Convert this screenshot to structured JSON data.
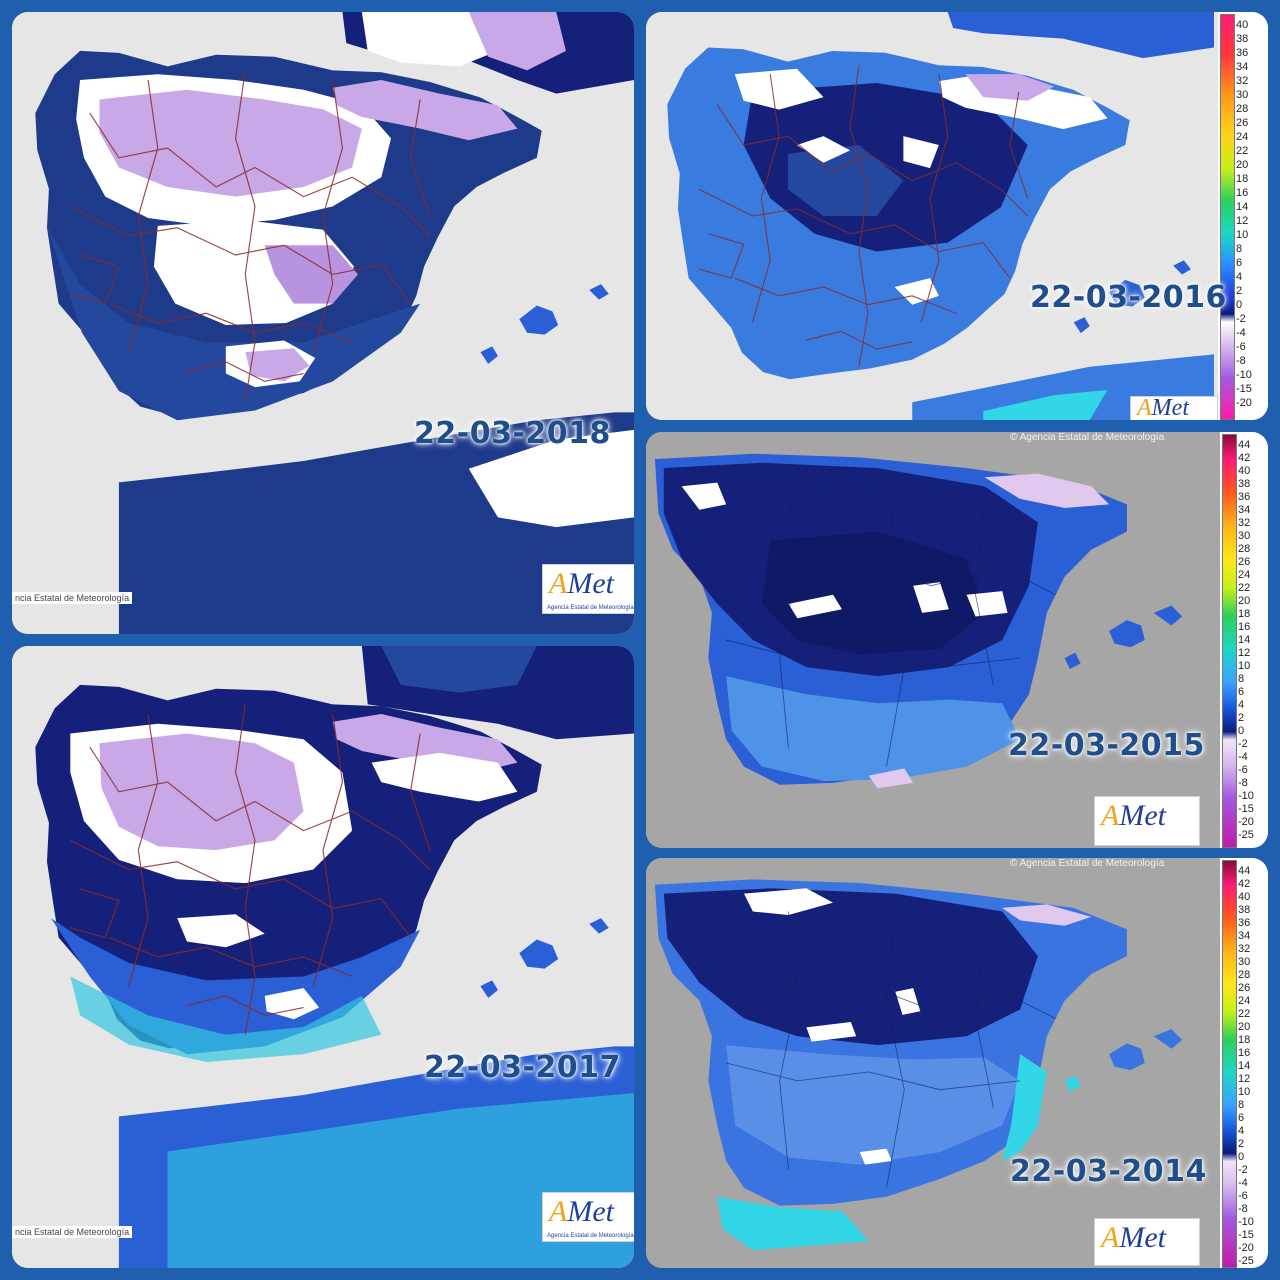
{
  "panels": [
    {
      "date": "22-03-2018",
      "credit": "ncia Estatal de Meteorología",
      "logo_main": "Met",
      "logo_a": "A",
      "logo_sub": "Agencia Estatal de Meteorología"
    },
    {
      "date": "22-03-2016",
      "logo_main": "Met",
      "logo_a": "A"
    },
    {
      "date": "22-03-2017",
      "credit": "ncia Estatal de Meteorología",
      "logo_main": "Met",
      "logo_a": "A",
      "logo_sub": "Agencia Estatal de Meteorología"
    },
    {
      "date": "22-03-2015",
      "copyright": "© Agencia Estatal de Meteorología",
      "logo_main": "Met",
      "logo_a": "A"
    },
    {
      "date": "22-03-2014",
      "copyright": "© Agencia Estatal de Meteorología",
      "logo_main": "Met",
      "logo_a": "A"
    }
  ],
  "scale_2016": {
    "labels": [
      "40",
      "38",
      "36",
      "34",
      "32",
      "30",
      "28",
      "26",
      "24",
      "22",
      "20",
      "18",
      "16",
      "14",
      "12",
      "10",
      "8",
      "6",
      "4",
      "2",
      "0",
      "-2",
      "-4",
      "-6",
      "-8",
      "-10",
      "-15",
      "-20"
    ]
  },
  "scale_2015": {
    "labels": [
      "44",
      "42",
      "40",
      "38",
      "36",
      "34",
      "32",
      "30",
      "28",
      "26",
      "24",
      "22",
      "20",
      "18",
      "16",
      "14",
      "12",
      "10",
      "8",
      "6",
      "4",
      "2",
      "0",
      "-2",
      "-4",
      "-6",
      "-8",
      "-10",
      "-15",
      "-20",
      "-25"
    ]
  },
  "scale_2014": {
    "labels": [
      "44",
      "42",
      "40",
      "38",
      "36",
      "34",
      "32",
      "30",
      "28",
      "26",
      "24",
      "22",
      "20",
      "18",
      "16",
      "14",
      "12",
      "10",
      "8",
      "6",
      "4",
      "2",
      "0",
      "-2",
      "-4",
      "-6",
      "-8",
      "-10",
      "-15",
      "-20",
      "-25"
    ]
  },
  "colors": {
    "frame": "#1f5fae",
    "cold_purple": "#c9a8e8",
    "snow": "#ffffff",
    "navy": "#15207a",
    "blue": "#2a5fd6",
    "light_blue": "#4f93e8",
    "cyan": "#33d6e6",
    "sea_gray": "#a6a6a6",
    "sea_light": "#e6e6e6"
  }
}
